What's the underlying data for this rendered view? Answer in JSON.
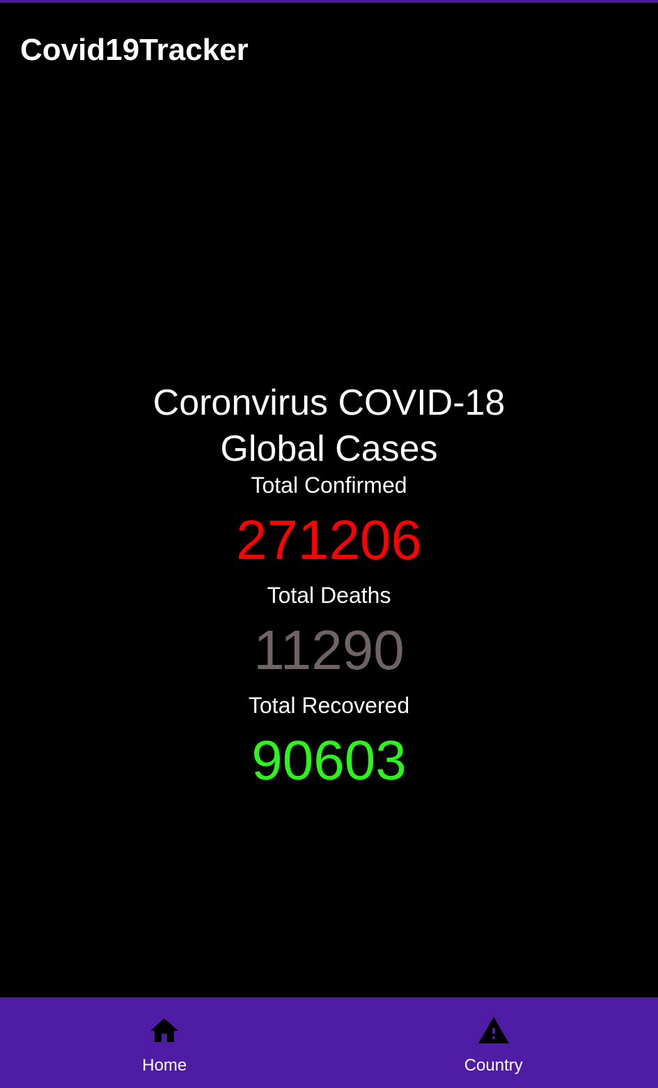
{
  "app": {
    "title": "Covid19Tracker"
  },
  "colors": {
    "accent": "#4f1ca6",
    "background": "#000000",
    "confirmed": "#ff0000",
    "deaths": "#6f6363",
    "recovered": "#2cf51a"
  },
  "main": {
    "headline_line1": "Coronvirus COVID-18",
    "headline_line2": "Global Cases",
    "stats": {
      "confirmed_label": "Total Confirmed",
      "confirmed_value": "271206",
      "deaths_label": "Total Deaths",
      "deaths_value": "11290",
      "recovered_label": "Total Recovered",
      "recovered_value": "90603"
    }
  },
  "bottom_nav": {
    "items": [
      {
        "label": "Home",
        "icon": "home-icon"
      },
      {
        "label": "Country",
        "icon": "warning-icon"
      }
    ]
  }
}
